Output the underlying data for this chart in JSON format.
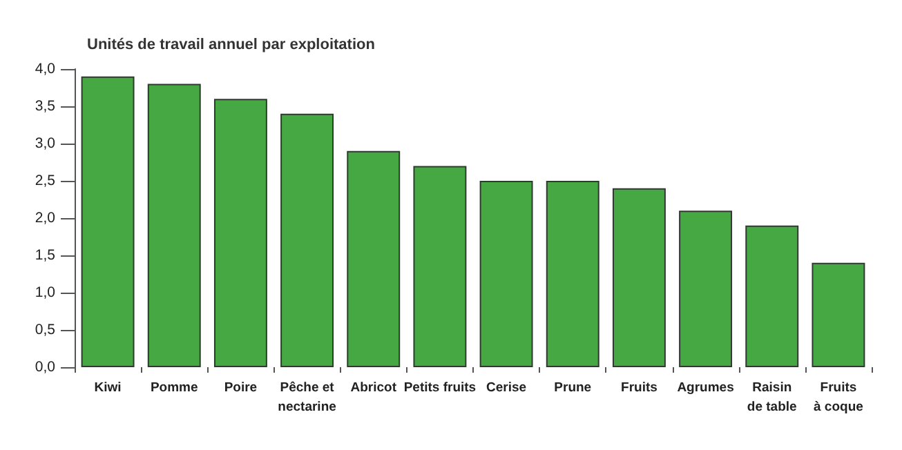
{
  "chart_data": {
    "type": "bar",
    "ylabel": "Unités de travail annuel par exploitation",
    "categories": [
      "Kiwi",
      "Pomme",
      "Poire",
      "Pêche et\nnectarine",
      "Abricot",
      "Petits fruits",
      "Cerise",
      "Prune",
      "Fruits",
      "Agrumes",
      "Raisin\nde table",
      "Fruits\nà coque"
    ],
    "values": [
      3.9,
      3.8,
      3.6,
      3.4,
      2.9,
      2.7,
      2.5,
      2.5,
      2.4,
      2.1,
      1.9,
      1.4
    ],
    "color": "#46a843",
    "ylim": [
      0,
      4
    ],
    "yticks": [
      {
        "value": 0,
        "label": "0,0"
      },
      {
        "value": 0.5,
        "label": "0,5"
      },
      {
        "value": 1,
        "label": "1,0"
      },
      {
        "value": 1.5,
        "label": "1,5"
      },
      {
        "value": 2,
        "label": "2,0"
      },
      {
        "value": 2.5,
        "label": "2,5"
      },
      {
        "value": 3,
        "label": "3,0"
      },
      {
        "value": 3.5,
        "label": "3,5"
      },
      {
        "value": 4,
        "label": "4,0"
      }
    ],
    "grid": false
  }
}
